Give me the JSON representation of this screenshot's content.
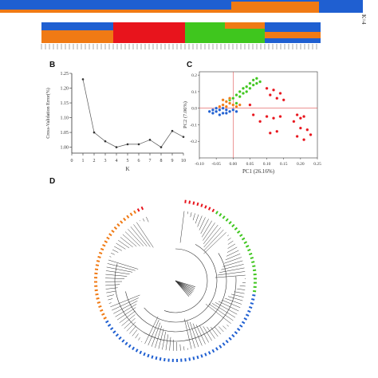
{
  "panels": {
    "A": {
      "side_label": "K=4",
      "colors": {
        "blue": "#1f5fd1",
        "orange": "#f07a14",
        "red": "#e8141c",
        "green": "#3fc61e"
      }
    },
    "B": {
      "label": "B",
      "chart_data": {
        "type": "line",
        "x": [
          1,
          2,
          3,
          4,
          5,
          6,
          7,
          8,
          9,
          10
        ],
        "values": [
          1.23,
          1.05,
          1.02,
          1.0,
          1.01,
          1.01,
          1.025,
          1.0,
          1.055,
          1.035
        ],
        "xlabel": "K",
        "ylabel": "Cross-Validation Error(%)",
        "xlim": [
          0,
          10
        ],
        "ylim": [
          0.98,
          1.25
        ],
        "xticks": [
          "0",
          "1",
          "2",
          "3",
          "4",
          "5",
          "6",
          "7",
          "8",
          "9",
          "10"
        ],
        "yticks": [
          "1.00",
          "1.05",
          "1.10",
          "1.15",
          "1.20",
          "1.25"
        ],
        "grid": false
      }
    },
    "C": {
      "label": "C",
      "chart_data": {
        "type": "scatter",
        "xlabel": "PC1 (26.16%)",
        "ylabel": "PC2 (7.06%)",
        "xlim": [
          -0.1,
          0.25
        ],
        "ylim": [
          -0.3,
          0.22
        ],
        "xticks": [
          "-0.10",
          "-0.05",
          "0.00",
          "0.05",
          "0.10",
          "0.15",
          "0.20",
          "0.25"
        ],
        "yticks": [
          "-0.2",
          "-0.1",
          "0.0",
          "0.1",
          "0.2"
        ],
        "series": [
          {
            "color": "#3fc61e",
            "points": [
              [
                0.05,
                0.15
              ],
              [
                0.06,
                0.17
              ],
              [
                0.07,
                0.18
              ],
              [
                0.04,
                0.13
              ],
              [
                0.03,
                0.12
              ],
              [
                0.02,
                0.1
              ],
              [
                0.01,
                0.08
              ],
              [
                0.05,
                0.12
              ],
              [
                0.06,
                0.14
              ],
              [
                0.0,
                0.06
              ],
              [
                -0.01,
                0.05
              ],
              [
                0.02,
                0.07
              ],
              [
                0.03,
                0.09
              ],
              [
                0.04,
                0.1
              ],
              [
                0.07,
                0.15
              ],
              [
                0.08,
                0.16
              ],
              [
                -0.02,
                0.04
              ],
              [
                0.01,
                0.03
              ]
            ]
          },
          {
            "color": "#f07a14",
            "points": [
              [
                -0.03,
                0.02
              ],
              [
                -0.02,
                0.01
              ],
              [
                -0.01,
                0.03
              ],
              [
                0.0,
                0.02
              ],
              [
                0.01,
                0.01
              ],
              [
                -0.04,
                0.01
              ],
              [
                -0.02,
                0.04
              ],
              [
                0.02,
                0.02
              ],
              [
                -0.03,
                0.05
              ],
              [
                -0.01,
                0.06
              ]
            ]
          },
          {
            "color": "#1f5fd1",
            "points": [
              [
                -0.06,
                -0.01
              ],
              [
                -0.05,
                -0.02
              ],
              [
                -0.04,
                -0.01
              ],
              [
                -0.03,
                -0.03
              ],
              [
                -0.02,
                -0.01
              ],
              [
                -0.05,
                0.0
              ],
              [
                -0.04,
                -0.04
              ],
              [
                -0.06,
                -0.03
              ],
              [
                -0.03,
                0.0
              ],
              [
                -0.01,
                -0.02
              ],
              [
                0.0,
                -0.01
              ],
              [
                -0.07,
                -0.02
              ],
              [
                -0.02,
                -0.03
              ],
              [
                0.01,
                -0.02
              ]
            ]
          },
          {
            "color": "#e8141c",
            "points": [
              [
                0.1,
                0.12
              ],
              [
                0.12,
                0.11
              ],
              [
                0.14,
                0.09
              ],
              [
                0.11,
                0.08
              ],
              [
                0.13,
                0.06
              ],
              [
                0.15,
                0.05
              ],
              [
                0.1,
                -0.05
              ],
              [
                0.12,
                -0.06
              ],
              [
                0.14,
                -0.05
              ],
              [
                0.19,
                -0.04
              ],
              [
                0.2,
                -0.06
              ],
              [
                0.21,
                -0.05
              ],
              [
                0.18,
                -0.08
              ],
              [
                0.2,
                -0.12
              ],
              [
                0.22,
                -0.13
              ],
              [
                0.19,
                -0.17
              ],
              [
                0.21,
                -0.19
              ],
              [
                0.23,
                -0.16
              ],
              [
                0.11,
                -0.15
              ],
              [
                0.13,
                -0.14
              ],
              [
                0.08,
                -0.08
              ],
              [
                0.06,
                -0.04
              ],
              [
                0.05,
                0.02
              ]
            ]
          }
        ]
      }
    },
    "D": {
      "label": "D",
      "tree": "circular phylogenetic tree"
    }
  }
}
